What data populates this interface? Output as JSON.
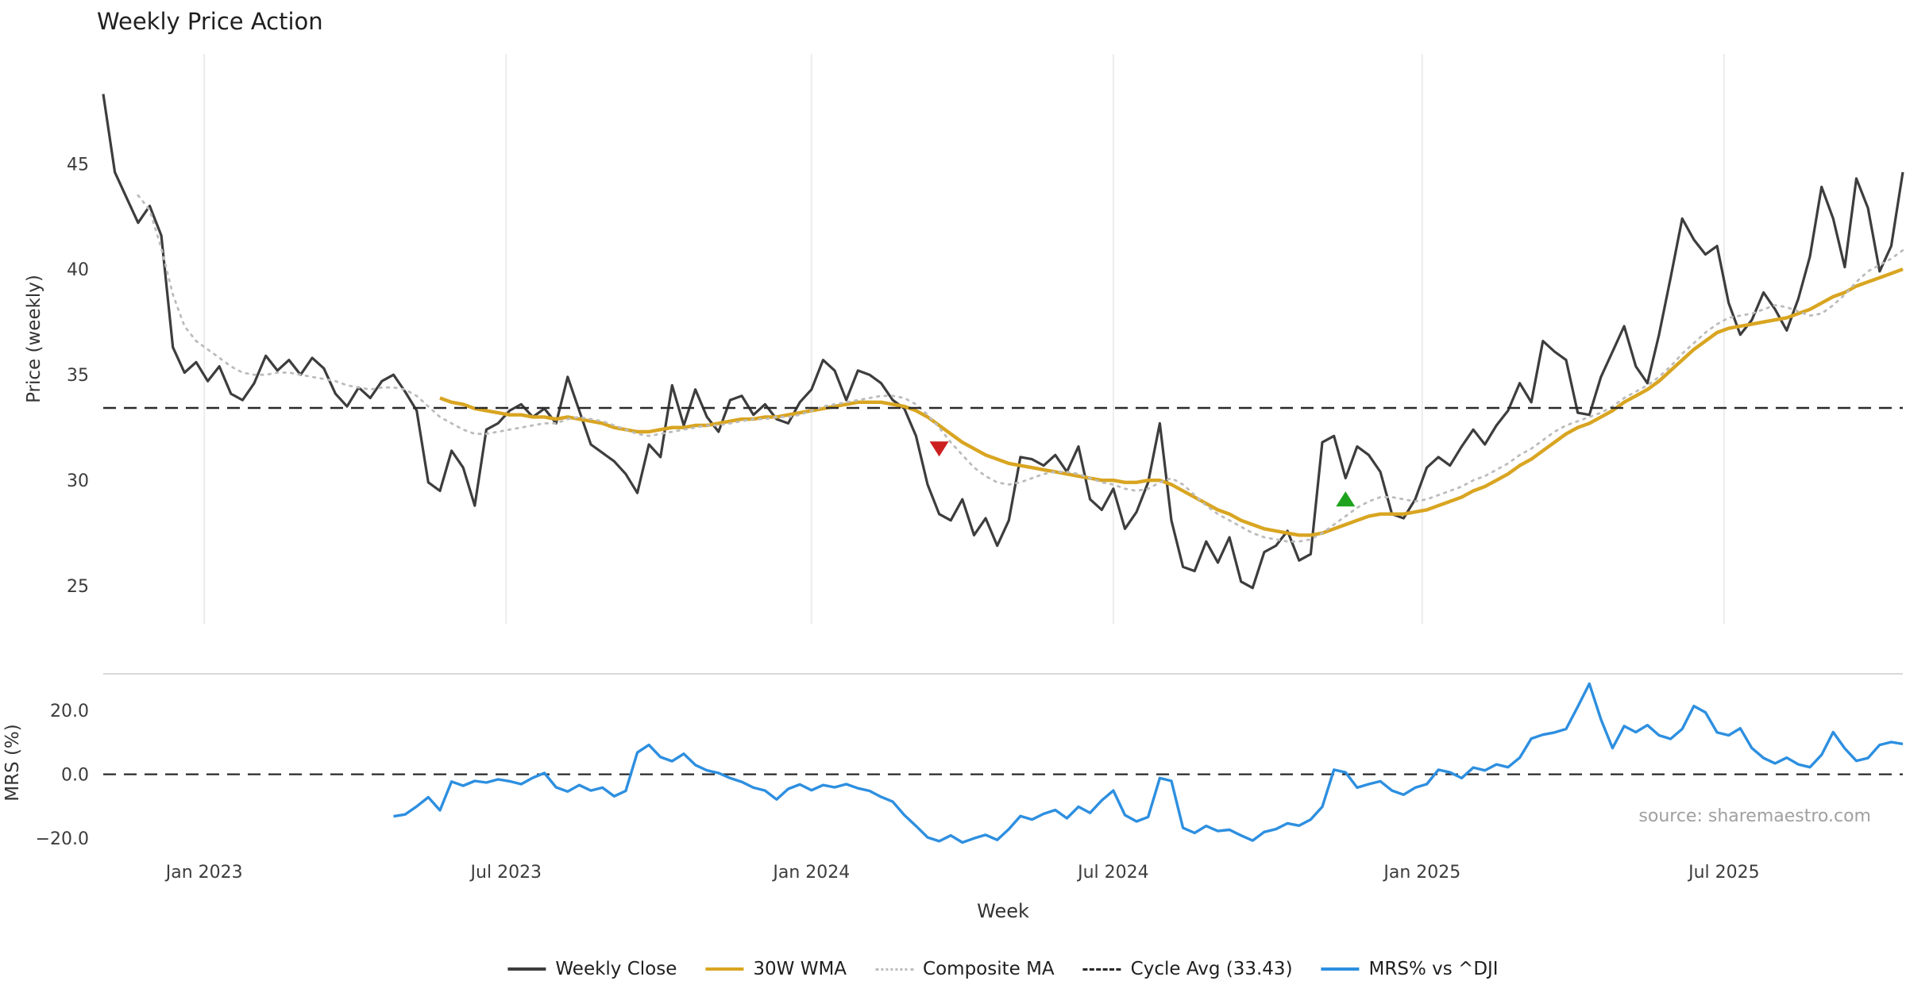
{
  "chart_data": {
    "type": "line",
    "title": "Weekly Price Action",
    "xlabel": "Week",
    "source_note": "source: sharemaestro.com",
    "x_range": [
      0,
      155
    ],
    "x_ticks": [
      {
        "x": 8.7,
        "label": "Jan 2023"
      },
      {
        "x": 34.7,
        "label": "Jul 2023"
      },
      {
        "x": 61.0,
        "label": "Jan 2024"
      },
      {
        "x": 87.0,
        "label": "Jul 2024"
      },
      {
        "x": 113.6,
        "label": "Jan 2025"
      },
      {
        "x": 139.6,
        "label": "Jul 2025"
      }
    ],
    "panels": [
      {
        "name": "price",
        "ylabel": "Price (weekly)",
        "ylim": [
          23.2,
          50.2
        ],
        "yticks": [
          {
            "v": 25,
            "label": "25"
          },
          {
            "v": 30,
            "label": "30"
          },
          {
            "v": 35,
            "label": "35"
          },
          {
            "v": 40,
            "label": "40"
          },
          {
            "v": 45,
            "label": "45"
          }
        ]
      },
      {
        "name": "mrs",
        "ylabel": "MRS (%)",
        "ylim": [
          -24.5,
          31.5
        ],
        "zero_line": 0,
        "yticks": [
          {
            "v": -20,
            "label": "−20.0"
          },
          {
            "v": 0,
            "label": "0.0"
          },
          {
            "v": 20,
            "label": "20.0"
          }
        ]
      }
    ],
    "series": [
      {
        "name": "Weekly Close",
        "panel": "price",
        "color": "#3d3d3d",
        "style": "solid",
        "values": [
          48.3,
          44.6,
          43.4,
          42.2,
          43.0,
          41.6,
          36.3,
          35.1,
          35.6,
          34.7,
          35.4,
          34.1,
          33.8,
          34.6,
          35.9,
          35.2,
          35.7,
          35.0,
          35.8,
          35.3,
          34.1,
          33.5,
          34.4,
          33.9,
          34.7,
          35.0,
          34.2,
          33.3,
          29.9,
          29.5,
          31.4,
          30.6,
          28.8,
          32.4,
          32.7,
          33.3,
          33.6,
          33.0,
          33.4,
          32.7,
          34.9,
          33.3,
          31.7,
          31.3,
          30.9,
          30.3,
          29.4,
          31.7,
          31.1,
          34.5,
          32.6,
          34.3,
          33.0,
          32.3,
          33.8,
          34.0,
          33.1,
          33.6,
          32.9,
          32.7,
          33.7,
          34.3,
          35.7,
          35.2,
          33.8,
          35.2,
          35.0,
          34.6,
          33.8,
          33.4,
          32.1,
          29.8,
          28.4,
          28.1,
          29.1,
          27.4,
          28.2,
          26.9,
          28.1,
          31.1,
          31.0,
          30.7,
          31.2,
          30.4,
          31.6,
          29.1,
          28.6,
          29.6,
          27.7,
          28.5,
          29.9,
          32.7,
          28.1,
          25.9,
          25.7,
          27.1,
          26.1,
          27.3,
          25.2,
          24.9,
          26.6,
          26.9,
          27.6,
          26.2,
          26.5,
          31.8,
          32.1,
          30.1,
          31.6,
          31.2,
          30.4,
          28.4,
          28.2,
          29.1,
          30.6,
          31.1,
          30.7,
          31.6,
          32.4,
          31.7,
          32.6,
          33.3,
          34.6,
          33.7,
          36.6,
          36.1,
          35.7,
          33.2,
          33.1,
          34.9,
          36.1,
          37.3,
          35.4,
          34.6,
          36.9,
          39.6,
          42.4,
          41.4,
          40.7,
          41.1,
          38.4,
          36.9,
          37.6,
          38.9,
          38.1,
          37.1,
          38.6,
          40.6,
          43.9,
          42.4,
          40.1,
          44.3,
          42.9,
          39.9,
          41.1,
          44.6
        ]
      },
      {
        "name": "30W WMA",
        "panel": "price",
        "color": "#d9a521",
        "style": "solid",
        "values": [
          null,
          null,
          null,
          null,
          null,
          null,
          null,
          null,
          null,
          null,
          null,
          null,
          null,
          null,
          null,
          null,
          null,
          null,
          null,
          null,
          null,
          null,
          null,
          null,
          null,
          null,
          null,
          null,
          null,
          33.9,
          33.7,
          33.6,
          33.4,
          33.3,
          33.2,
          33.1,
          33.1,
          33.0,
          33.0,
          32.9,
          33.0,
          32.9,
          32.8,
          32.7,
          32.5,
          32.4,
          32.3,
          32.3,
          32.4,
          32.5,
          32.5,
          32.6,
          32.6,
          32.7,
          32.8,
          32.9,
          32.9,
          33.0,
          33.0,
          33.1,
          33.2,
          33.3,
          33.4,
          33.5,
          33.6,
          33.7,
          33.7,
          33.7,
          33.6,
          33.5,
          33.3,
          33.0,
          32.6,
          32.2,
          31.8,
          31.5,
          31.2,
          31.0,
          30.8,
          30.7,
          30.6,
          30.5,
          30.4,
          30.3,
          30.2,
          30.1,
          30.0,
          30.0,
          29.9,
          29.9,
          30.0,
          30.0,
          29.8,
          29.5,
          29.2,
          28.9,
          28.6,
          28.4,
          28.1,
          27.9,
          27.7,
          27.6,
          27.5,
          27.4,
          27.4,
          27.5,
          27.7,
          27.9,
          28.1,
          28.3,
          28.4,
          28.4,
          28.4,
          28.5,
          28.6,
          28.8,
          29.0,
          29.2,
          29.5,
          29.7,
          30.0,
          30.3,
          30.7,
          31.0,
          31.4,
          31.8,
          32.2,
          32.5,
          32.7,
          33.0,
          33.3,
          33.7,
          34.0,
          34.3,
          34.7,
          35.2,
          35.7,
          36.2,
          36.6,
          37.0,
          37.2,
          37.3,
          37.4,
          37.5,
          37.6,
          37.7,
          37.9,
          38.1,
          38.4,
          38.7,
          38.9,
          39.2,
          39.4,
          39.6,
          39.8,
          40.0
        ]
      },
      {
        "name": "Composite MA",
        "panel": "price",
        "color": "#bcbcbc",
        "style": "dotted",
        "values": [
          null,
          null,
          null,
          43.5,
          42.8,
          41.0,
          38.8,
          37.3,
          36.6,
          36.2,
          35.8,
          35.4,
          35.1,
          35.0,
          35.0,
          35.1,
          35.1,
          35.0,
          34.9,
          34.8,
          34.7,
          34.5,
          34.4,
          34.3,
          34.4,
          34.4,
          34.3,
          34.0,
          33.5,
          33.0,
          32.7,
          32.4,
          32.2,
          32.2,
          32.3,
          32.4,
          32.5,
          32.6,
          32.7,
          32.7,
          32.9,
          33.0,
          32.9,
          32.8,
          32.6,
          32.4,
          32.2,
          32.1,
          32.2,
          32.3,
          32.4,
          32.5,
          32.6,
          32.6,
          32.7,
          32.8,
          32.9,
          32.9,
          33.0,
          33.0,
          33.1,
          33.3,
          33.5,
          33.6,
          33.7,
          33.8,
          33.9,
          34.0,
          34.0,
          33.9,
          33.6,
          33.1,
          32.5,
          31.8,
          31.2,
          30.6,
          30.2,
          29.9,
          29.8,
          29.9,
          30.1,
          30.3,
          30.4,
          30.4,
          30.3,
          30.1,
          29.9,
          29.8,
          29.6,
          29.5,
          29.6,
          29.9,
          30.1,
          29.8,
          29.3,
          28.8,
          28.4,
          28.1,
          27.8,
          27.5,
          27.3,
          27.2,
          27.1,
          27.1,
          27.2,
          27.5,
          27.9,
          28.3,
          28.7,
          29.0,
          29.2,
          29.2,
          29.1,
          29.0,
          29.1,
          29.3,
          29.5,
          29.7,
          30.0,
          30.2,
          30.5,
          30.8,
          31.2,
          31.5,
          31.9,
          32.3,
          32.6,
          32.8,
          33.0,
          33.2,
          33.5,
          33.9,
          34.2,
          34.5,
          34.9,
          35.4,
          36.0,
          36.5,
          37.0,
          37.4,
          37.7,
          37.8,
          37.9,
          38.1,
          38.3,
          38.2,
          38.0,
          37.8,
          37.9,
          38.3,
          38.8,
          39.4,
          39.9,
          40.2,
          40.5,
          40.9
        ]
      },
      {
        "name": "Cycle Avg (33.43)",
        "panel": "price",
        "color": "#2a2a2a",
        "style": "dashed",
        "hline": 33.43
      },
      {
        "name": "MRS% vs ^DJI",
        "panel": "mrs",
        "color": "#2d8fe0",
        "style": "solid",
        "values": [
          null,
          null,
          null,
          null,
          null,
          null,
          null,
          null,
          null,
          null,
          null,
          null,
          null,
          null,
          null,
          null,
          null,
          null,
          null,
          null,
          null,
          null,
          null,
          null,
          null,
          -13.2,
          -12.6,
          -10.1,
          -7.2,
          -11.3,
          -2.3,
          -3.6,
          -2.1,
          -2.6,
          -1.6,
          -2.2,
          -3.1,
          -1.1,
          0.4,
          -4.1,
          -5.4,
          -3.4,
          -5.1,
          -4.2,
          -6.9,
          -5.2,
          6.8,
          9.2,
          5.4,
          4.1,
          6.4,
          2.9,
          1.2,
          0.4,
          -1.2,
          -2.4,
          -4.2,
          -5.1,
          -7.9,
          -4.6,
          -3.2,
          -5.0,
          -3.4,
          -4.1,
          -3.1,
          -4.4,
          -5.2,
          -7.1,
          -8.6,
          -12.8,
          -16.2,
          -19.8,
          -21.0,
          -19.2,
          -21.4,
          -20.1,
          -19.0,
          -20.6,
          -17.2,
          -13.1,
          -14.2,
          -12.4,
          -11.2,
          -13.8,
          -10.2,
          -12.1,
          -8.2,
          -5.1,
          -12.8,
          -14.8,
          -13.4,
          -1.2,
          -2.1,
          -16.8,
          -18.4,
          -16.2,
          -17.8,
          -17.4,
          -19.2,
          -20.8,
          -18.1,
          -17.2,
          -15.4,
          -16.1,
          -14.2,
          -10.2,
          1.4,
          0.6,
          -4.2,
          -3.1,
          -2.2,
          -5.1,
          -6.4,
          -4.2,
          -3.1,
          1.4,
          0.6,
          -1.2,
          2.1,
          1.2,
          3.1,
          2.2,
          5.2,
          11.2,
          12.4,
          13.1,
          14.2,
          21.2,
          28.4,
          17.2,
          8.2,
          15.1,
          13.2,
          15.4,
          12.2,
          11.1,
          14.2,
          21.4,
          19.4,
          13.1,
          12.2,
          14.4,
          8.2,
          5.1,
          3.4,
          5.2,
          3.1,
          2.2,
          6.1,
          13.2,
          8.1,
          4.2,
          5.1,
          9.2,
          10.1,
          9.5
        ]
      }
    ],
    "markers": [
      {
        "type": "sell",
        "shape": "triangle-down",
        "color": "#cc2020",
        "x": 72,
        "y": 31.5
      },
      {
        "type": "buy",
        "shape": "triangle-up",
        "color": "#1fa31f",
        "x": 107,
        "y": 29.1
      }
    ],
    "legend": [
      "Weekly Close",
      "30W WMA",
      "Composite MA",
      "Cycle Avg (33.43)",
      "MRS% vs ^DJI"
    ]
  }
}
